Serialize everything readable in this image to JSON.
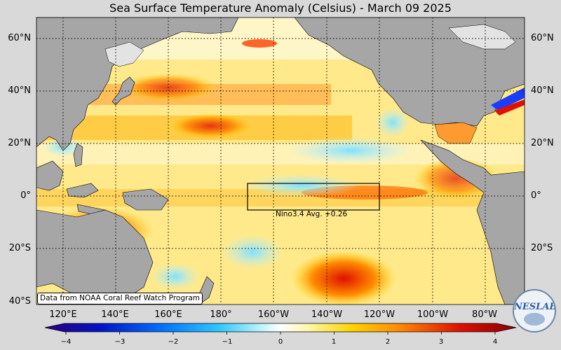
{
  "title": "Sea Surface Temperature Anomaly (Celsius) - March 09 2025",
  "latitude_labels": [
    "60°N",
    "40°N",
    "20°N",
    "0°",
    "20°S",
    "40°S"
  ],
  "longitude_labels": [
    "120°E",
    "140°E",
    "160°E",
    "180°",
    "160°W",
    "140°W",
    "120°W",
    "100°W",
    "80°W"
  ],
  "region_box": {
    "label": "Nino3.4 Avg. +0.26",
    "name": "Nino3.4",
    "average_anomaly": 0.26,
    "lon_range": [
      "170°W",
      "120°W"
    ],
    "lat_range": [
      "5°N",
      "5°S"
    ]
  },
  "colorbar": {
    "ticks": [
      "−4",
      "−3",
      "−2",
      "−1",
      "0",
      "1",
      "2",
      "3",
      "4"
    ],
    "min": -4,
    "max": 4,
    "colors": [
      "#2a0080",
      "#0015c8",
      "#0073ff",
      "#2ec8ff",
      "#bff4ff",
      "#ffffff",
      "#fff7a8",
      "#ffd400",
      "#ff8c00",
      "#e01000",
      "#8a0000"
    ]
  },
  "credit": "Data from NOAA Coral Reef Watch Program",
  "logo_text": "NESLAB",
  "colors": {
    "land": "#a6a6a6",
    "ice": "#e3e3e3",
    "background": "#d9d9d9",
    "grid": "#000000"
  }
}
